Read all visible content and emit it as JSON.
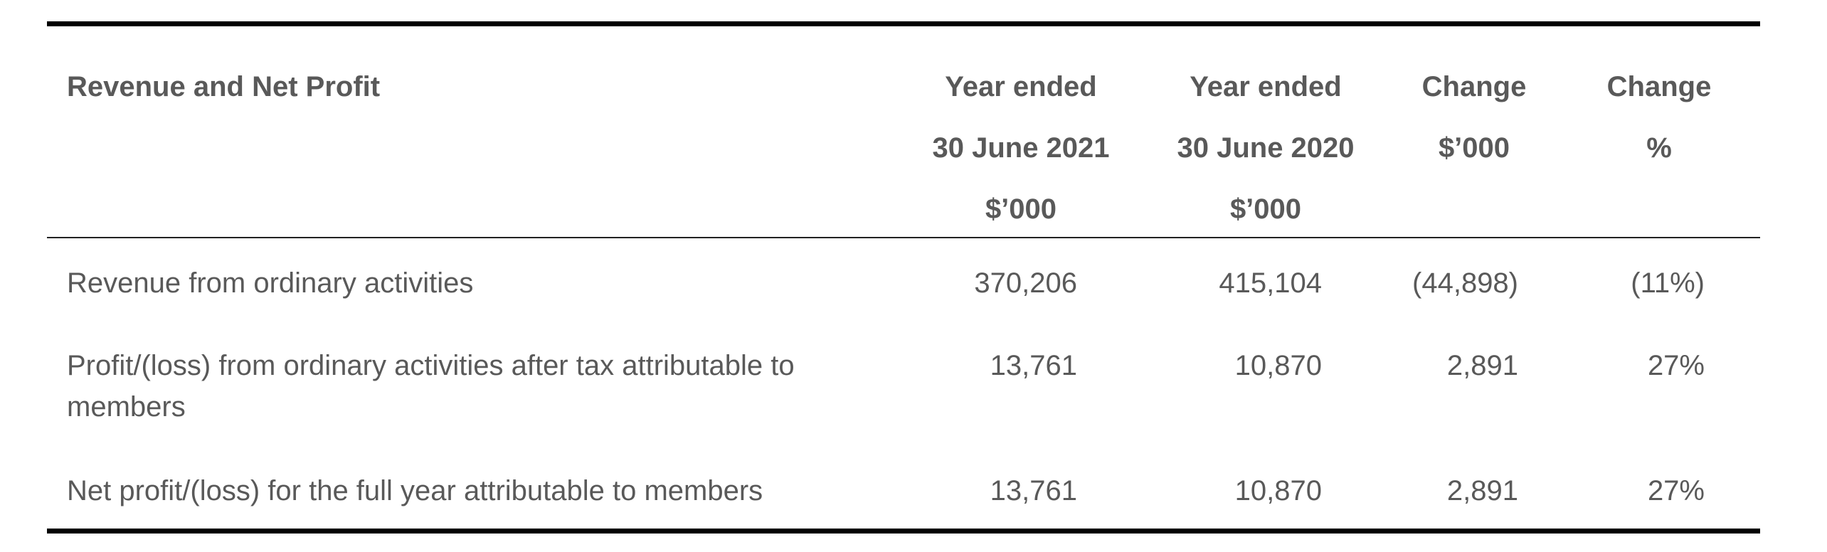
{
  "table": {
    "header": {
      "label": "Revenue and Net Profit",
      "col1": [
        "Year ended",
        "30 June 2021",
        "$’000"
      ],
      "col2": [
        "Year ended",
        "30 June 2020",
        "$’000"
      ],
      "col3": [
        "Change",
        "$’000"
      ],
      "col4": [
        "Change",
        "%"
      ]
    },
    "rows": [
      {
        "label": "Revenue from ordinary activities",
        "values": [
          "370,206",
          "415,104",
          "(44,898)",
          "(11%)"
        ]
      },
      {
        "label": "Profit/(loss) from ordinary activities after tax attributable to members",
        "values": [
          "13,761",
          "10,870",
          "2,891",
          "27%"
        ]
      },
      {
        "label": "Net profit/(loss) for the full year attributable to members",
        "values": [
          "13,761",
          "10,870",
          "2,891",
          "27%"
        ]
      }
    ]
  }
}
